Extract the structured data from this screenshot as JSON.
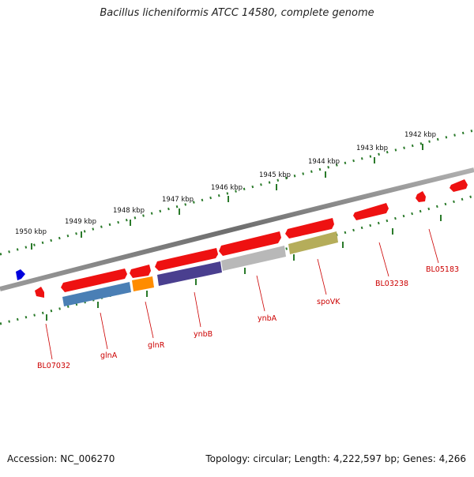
{
  "title": "Bacillus licheniformis ATCC 14580, complete genome",
  "footer": {
    "accession": "Accession: NC_006270",
    "summary": "Topology: circular; Length: 4,222,597 bp; Genes: 4,266"
  },
  "scale": {
    "unit": "kbp",
    "labels": [
      "1950 kbp",
      "1949 kbp",
      "1948 kbp",
      "1947 kbp",
      "1946 kbp",
      "1945 kbp",
      "1944 kbp",
      "1943 kbp",
      "1942 kbp"
    ]
  },
  "genes": {
    "labels": [
      "BL07032",
      "glnA",
      "glnR",
      "ynbB",
      "ynbA",
      "spoVK",
      "BL03238",
      "BL05183"
    ],
    "label_color": "#cc0000",
    "cds_color": "#ee1111",
    "feature_colors": {
      "glnA": "#4a7fb5",
      "glnR": "#ff8c00",
      "ynbB": "#4a3f8f",
      "ynbA": "#b8b8b8",
      "spoVK": "#b5ad5a",
      "other_strand_marker": "#0000dd"
    }
  },
  "colors": {
    "backbone": "#7a7a7a",
    "tick_marks": "#2a7a2a"
  }
}
